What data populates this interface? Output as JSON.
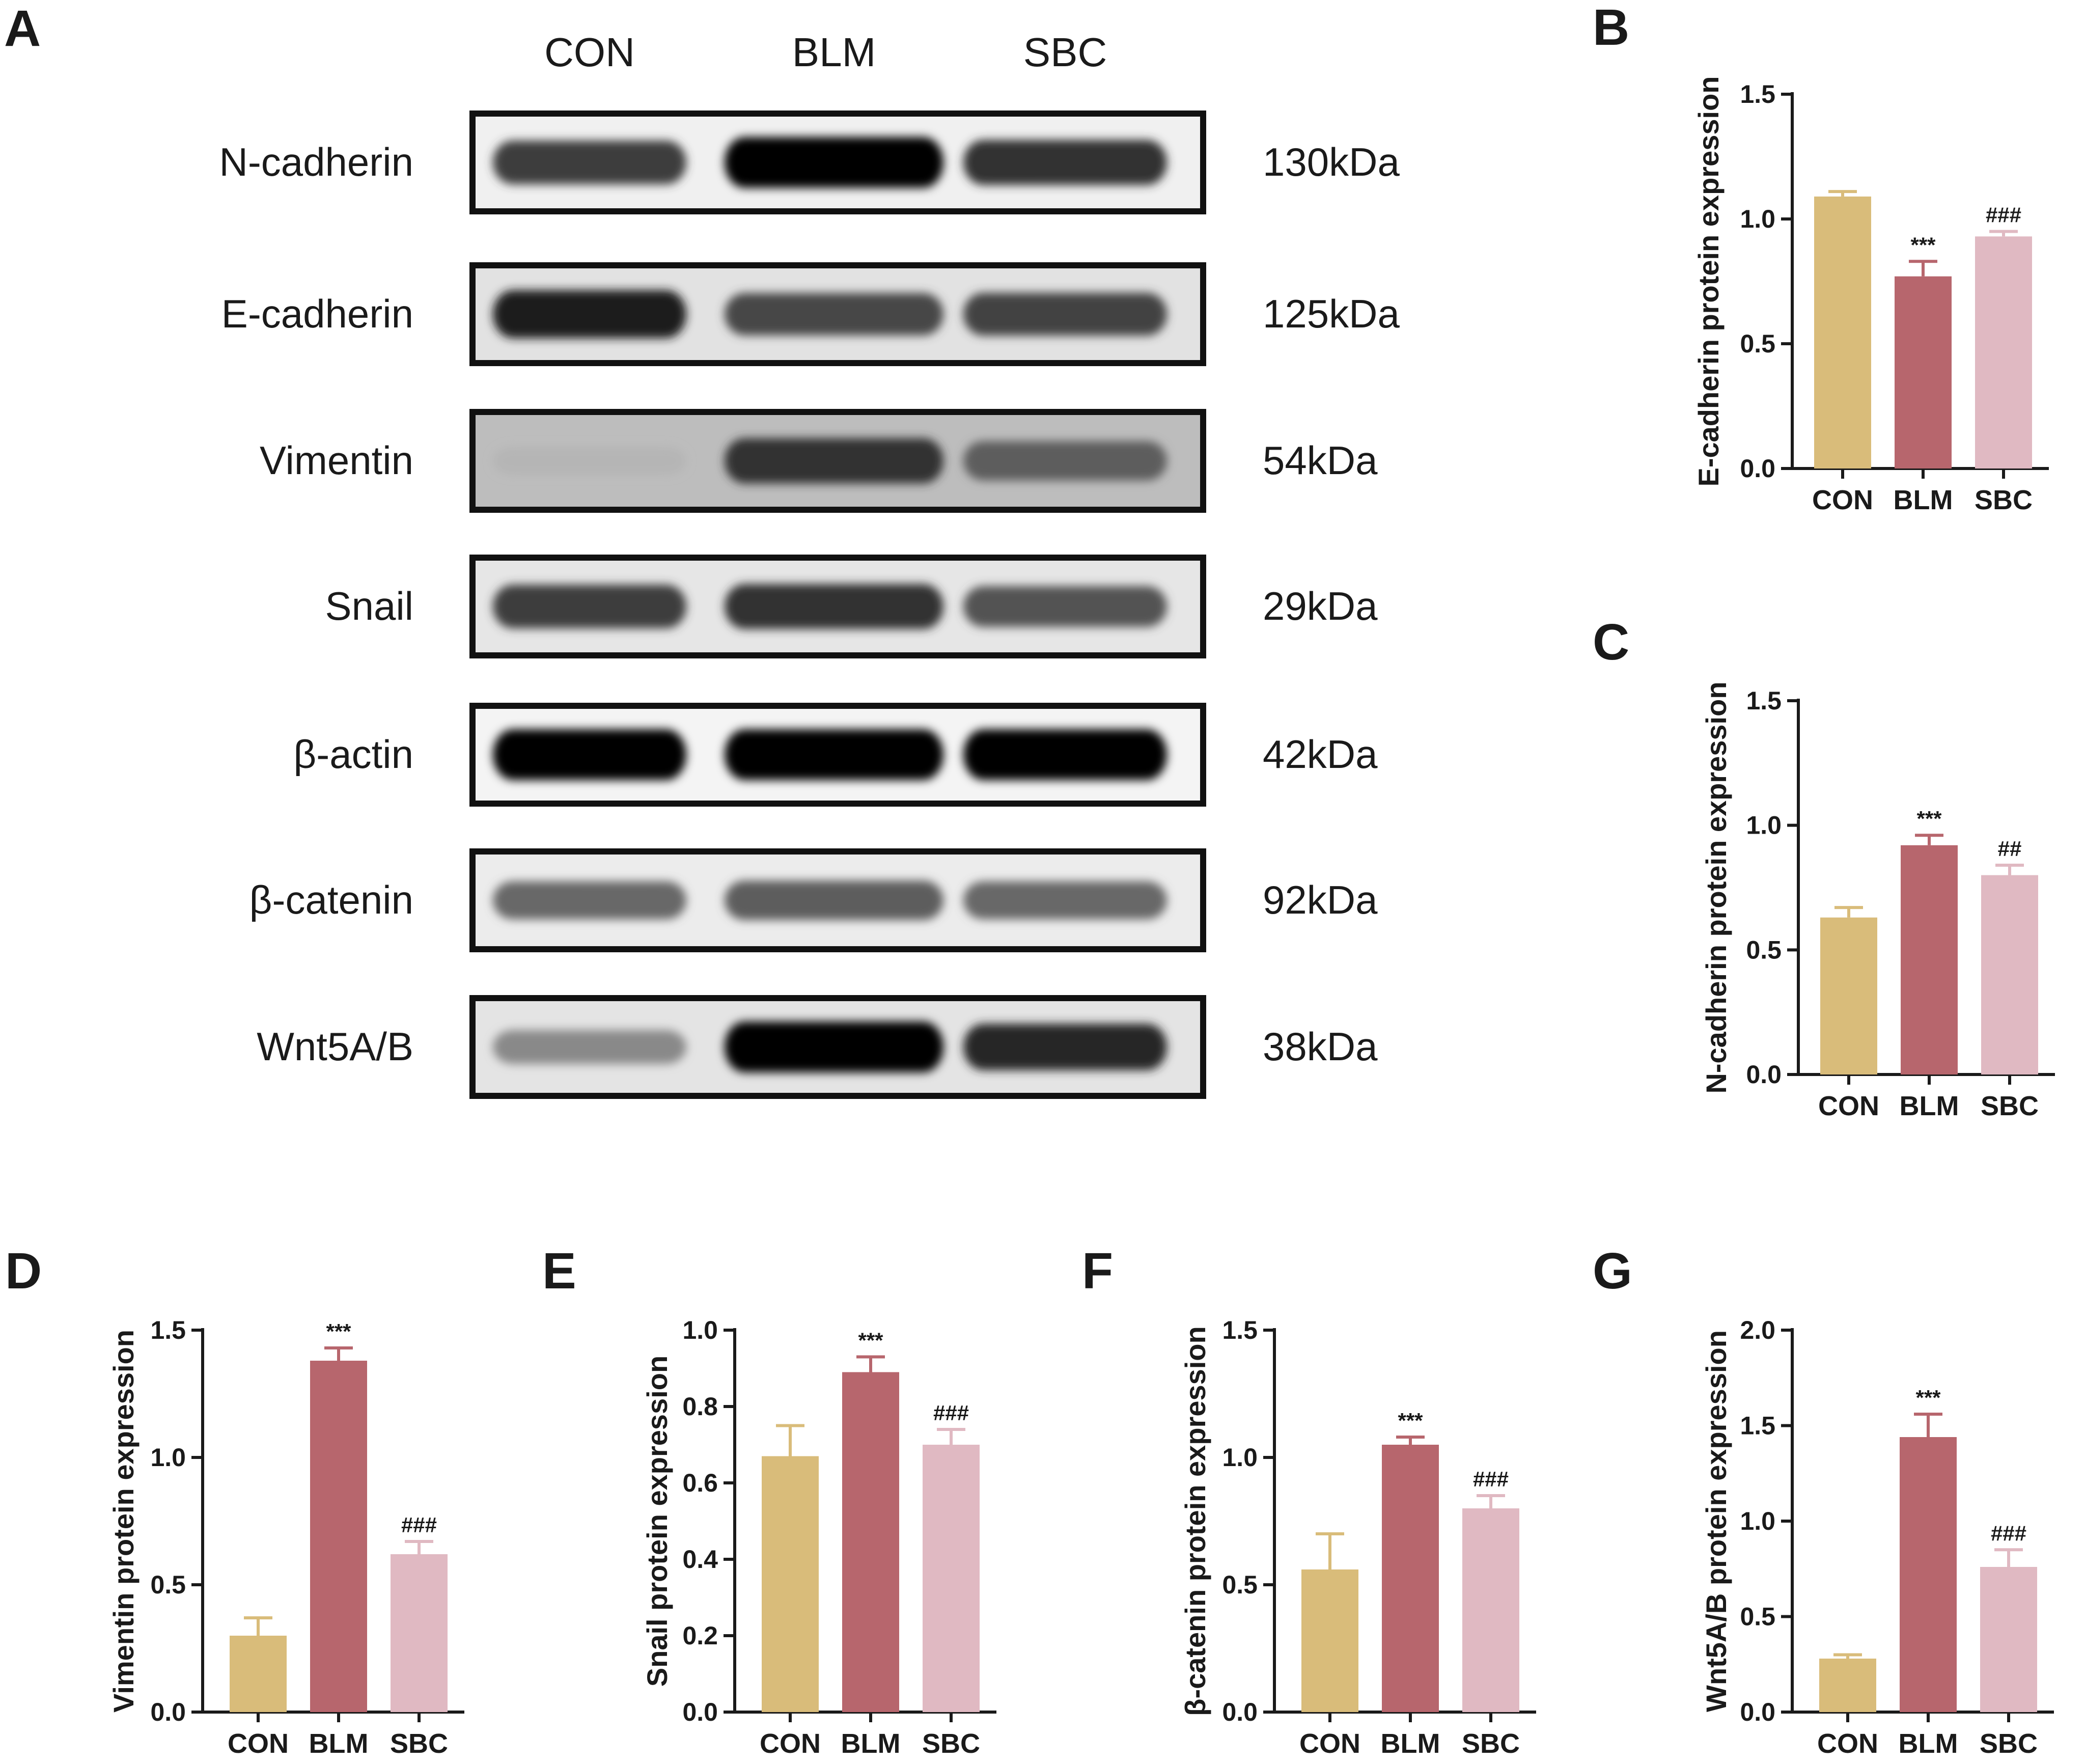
{
  "blot": {
    "letter": "A",
    "lanes": [
      "CON",
      "BLM",
      "SBC"
    ],
    "rows": [
      {
        "label": "N-cadherin",
        "kda": "130kDa",
        "intensity": [
          0.75,
          1.0,
          0.8
        ],
        "bg": "#f0f0f0"
      },
      {
        "label": "E-cadherin",
        "kda": "125kDa",
        "intensity": [
          0.9,
          0.7,
          0.72
        ],
        "bg": "#e2e2e2"
      },
      {
        "label": "Vimentin",
        "kda": "54kDa",
        "intensity": [
          0.2,
          0.8,
          0.6
        ],
        "bg": "#bdbdbd"
      },
      {
        "label": "Snail",
        "kda": "29kDa",
        "intensity": [
          0.75,
          0.8,
          0.65
        ],
        "bg": "#e6e6e6"
      },
      {
        "label": "β-actin",
        "kda": "42kDa",
        "intensity": [
          1.0,
          1.0,
          1.0
        ],
        "bg": "#f4f4f4"
      },
      {
        "label": "β-catenin",
        "kda": "92kDa",
        "intensity": [
          0.55,
          0.6,
          0.55
        ],
        "bg": "#ececec"
      },
      {
        "label": "Wnt5A/B",
        "kda": "38kDa",
        "intensity": [
          0.4,
          1.0,
          0.85
        ],
        "bg": "#e4e4e4"
      }
    ]
  },
  "colors": {
    "CON": "#d9bc7a",
    "BLM": "#b7666d",
    "SBC": "#e0b9c2",
    "axis": "#1a1a1a"
  },
  "chart_data": [
    {
      "letter": "B",
      "type": "bar",
      "categories": [
        "CON",
        "BLM",
        "SBC"
      ],
      "values": [
        1.09,
        0.77,
        0.93
      ],
      "errors": [
        0.02,
        0.06,
        0.02
      ],
      "annotations": [
        "",
        "***",
        "###"
      ],
      "ylabel": "E-cadherin protein expression",
      "ylim": [
        0,
        1.5
      ],
      "yticks": [
        0.0,
        0.5,
        1.0,
        1.5
      ],
      "tick_labels": [
        "0.0",
        "0.5",
        "1.0",
        "1.5"
      ]
    },
    {
      "letter": "C",
      "type": "bar",
      "categories": [
        "CON",
        "BLM",
        "SBC"
      ],
      "values": [
        0.63,
        0.92,
        0.8
      ],
      "errors": [
        0.04,
        0.04,
        0.04
      ],
      "annotations": [
        "",
        "***",
        "##"
      ],
      "ylabel": "N-cadherin protein expression",
      "ylim": [
        0,
        1.5
      ],
      "yticks": [
        0.0,
        0.5,
        1.0,
        1.5
      ],
      "tick_labels": [
        "0.0",
        "0.5",
        "1.0",
        "1.5"
      ]
    },
    {
      "letter": "D",
      "type": "bar",
      "categories": [
        "CON",
        "BLM",
        "SBC"
      ],
      "values": [
        0.3,
        1.38,
        0.62
      ],
      "errors": [
        0.07,
        0.05,
        0.05
      ],
      "annotations": [
        "",
        "***",
        "###"
      ],
      "ylabel": "Vimentin protein expression",
      "ylim": [
        0,
        1.5
      ],
      "yticks": [
        0.0,
        0.5,
        1.0,
        1.5
      ],
      "tick_labels": [
        "0.0",
        "0.5",
        "1.0",
        "1.5"
      ]
    },
    {
      "letter": "E",
      "type": "bar",
      "categories": [
        "CON",
        "BLM",
        "SBC"
      ],
      "values": [
        0.67,
        0.89,
        0.7
      ],
      "errors": [
        0.08,
        0.04,
        0.04
      ],
      "annotations": [
        "",
        "***",
        "###"
      ],
      "ylabel": "Snail protein expression",
      "ylim": [
        0,
        1.0
      ],
      "yticks": [
        0.0,
        0.2,
        0.4,
        0.6,
        0.8,
        1.0
      ],
      "tick_labels": [
        "0.0",
        "0.2",
        "0.4",
        "0.6",
        "0.8",
        "1.0"
      ]
    },
    {
      "letter": "F",
      "type": "bar",
      "categories": [
        "CON",
        "BLM",
        "SBC"
      ],
      "values": [
        0.56,
        1.05,
        0.8
      ],
      "errors": [
        0.14,
        0.03,
        0.05
      ],
      "annotations": [
        "",
        "***",
        "###"
      ],
      "ylabel": "β-catenin protein expression",
      "ylim": [
        0,
        1.5
      ],
      "yticks": [
        0.0,
        0.5,
        1.0,
        1.5
      ],
      "tick_labels": [
        "0.0",
        "0.5",
        "1.0",
        "1.5"
      ]
    },
    {
      "letter": "G",
      "type": "bar",
      "categories": [
        "CON",
        "BLM",
        "SBC"
      ],
      "values": [
        0.28,
        1.44,
        0.76
      ],
      "errors": [
        0.02,
        0.12,
        0.09
      ],
      "annotations": [
        "",
        "***",
        "###"
      ],
      "ylabel": "Wnt5A/B protein expression",
      "ylim": [
        0,
        2.0
      ],
      "yticks": [
        0.0,
        0.5,
        1.0,
        1.5,
        2.0
      ],
      "tick_labels": [
        "0.0",
        "0.5",
        "1.0",
        "1.5",
        "2.0"
      ]
    }
  ]
}
